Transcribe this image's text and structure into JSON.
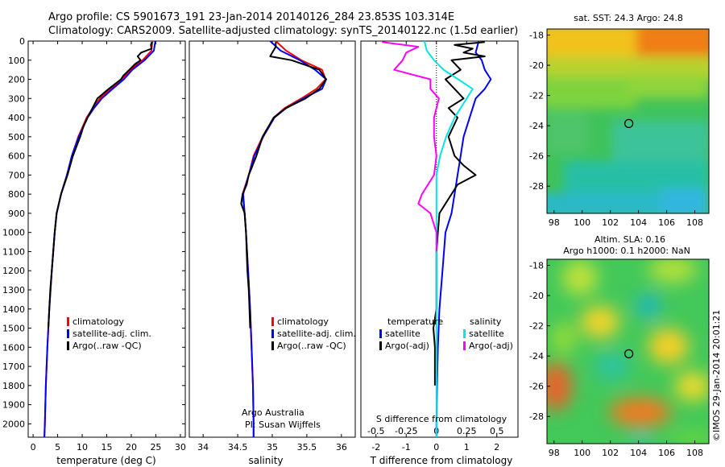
{
  "title_line1": "Argo profile: CS 5901673_191 23-Jan-2014 20140126_284 23.853S 103.314E",
  "title_line2": "Climatology: CARS2009. Satellite-adjusted climatology: synTS_20140122.nc (1.5d earlier)",
  "depth_ticks": [
    0,
    100,
    200,
    300,
    400,
    500,
    600,
    700,
    800,
    900,
    1000,
    1100,
    1200,
    1300,
    1400,
    1500,
    1600,
    1700,
    1800,
    1900,
    2000
  ],
  "colors": {
    "climatology": "#ff0000",
    "satellite": "#0000ff",
    "argo": "#000000",
    "cyan": "#00e5e5",
    "magenta": "#ff00ff"
  },
  "chart_data": [
    {
      "type": "line",
      "xlabel": "temperature (deg C)",
      "xticks": [
        0,
        5,
        10,
        15,
        20,
        25,
        30
      ],
      "xlim": [
        -1,
        31
      ],
      "ylim": [
        2070,
        0
      ],
      "legend": [
        "climatology",
        "satellite-adj. clim.",
        "Argo(..raw -QC)"
      ],
      "series": [
        {
          "name": "climatology",
          "depth": [
            0,
            50,
            100,
            150,
            200,
            250,
            300,
            350,
            400,
            500,
            600,
            700,
            800,
            900,
            1000,
            1200,
            1400,
            1600,
            1800,
            2000,
            2070
          ],
          "values": [
            24.3,
            24.1,
            22.3,
            19.8,
            18.1,
            15.8,
            13.6,
            12.2,
            10.9,
            9.2,
            7.9,
            6.9,
            5.7,
            4.8,
            4.4,
            3.8,
            3.3,
            2.9,
            2.6,
            2.4,
            2.3
          ]
        },
        {
          "name": "satellite-adj. clim.",
          "depth": [
            0,
            50,
            100,
            150,
            200,
            250,
            300,
            350,
            400,
            500,
            600,
            700,
            800,
            900,
            1000,
            1200,
            1400,
            1600,
            1800,
            2000,
            2070
          ],
          "values": [
            24.9,
            24.6,
            22.7,
            20.2,
            18.5,
            16.2,
            14.0,
            12.4,
            11.1,
            9.3,
            7.9,
            6.9,
            5.7,
            4.8,
            4.4,
            3.8,
            3.3,
            2.9,
            2.6,
            2.4,
            2.3
          ]
        },
        {
          "name": "Argo(..raw -QC)",
          "depth": [
            5,
            20,
            40,
            60,
            80,
            100,
            120,
            150,
            180,
            200,
            250,
            300,
            350,
            400,
            450,
            500,
            600,
            700,
            800,
            900,
            1000,
            1100,
            1200,
            1300,
            1400,
            1500
          ],
          "values": [
            24.2,
            24.0,
            24.1,
            22.0,
            21.3,
            21.9,
            20.8,
            19.6,
            18.4,
            17.9,
            15.4,
            13.1,
            12.1,
            11.1,
            10.2,
            9.6,
            8.1,
            7.0,
            5.7,
            4.8,
            4.4,
            4.1,
            3.8,
            3.5,
            3.3,
            3.1
          ]
        }
      ]
    },
    {
      "type": "line",
      "xlabel": "salinity",
      "xticks": [
        "34",
        "34.5",
        "35",
        "35.5",
        "36"
      ],
      "xlim": [
        33.8,
        36.2
      ],
      "ylim": [
        2070,
        0
      ],
      "legend": [
        "climatology",
        "satellite-adj. clim.",
        "Argo(..raw -QC)"
      ],
      "annotation": [
        "Argo Australia",
        "PI: Susan Wijffels"
      ],
      "series": [
        {
          "name": "climatology",
          "depth": [
            0,
            50,
            100,
            150,
            200,
            250,
            300,
            350,
            400,
            500,
            600,
            700,
            800,
            900,
            1000,
            1200,
            1400,
            1600,
            1800,
            2000,
            2070
          ],
          "values": [
            35.05,
            35.2,
            35.42,
            35.72,
            35.77,
            35.64,
            35.42,
            35.18,
            35.02,
            34.86,
            34.73,
            34.66,
            34.57,
            34.6,
            34.62,
            34.65,
            34.68,
            34.7,
            34.72,
            34.73,
            34.73
          ]
        },
        {
          "name": "satellite-adj. clim.",
          "depth": [
            0,
            50,
            100,
            150,
            200,
            250,
            300,
            350,
            400,
            500,
            600,
            700,
            800,
            900,
            1000,
            1200,
            1400,
            1600,
            1800,
            2000,
            2070
          ],
          "values": [
            34.97,
            35.12,
            35.4,
            35.62,
            35.78,
            35.72,
            35.45,
            35.2,
            35.03,
            34.87,
            34.74,
            34.66,
            34.58,
            34.6,
            34.62,
            34.65,
            34.68,
            34.7,
            34.72,
            34.73,
            34.73
          ]
        },
        {
          "name": "Argo(..raw -QC)",
          "depth": [
            5,
            30,
            60,
            80,
            100,
            150,
            200,
            250,
            300,
            350,
            400,
            500,
            600,
            700,
            750,
            800,
            850,
            900,
            1000,
            1100,
            1200,
            1300,
            1400,
            1500
          ],
          "values": [
            35.05,
            35.05,
            35.0,
            34.97,
            35.28,
            35.68,
            35.78,
            35.68,
            35.48,
            35.2,
            35.02,
            34.86,
            34.77,
            34.66,
            34.63,
            34.57,
            34.55,
            34.6,
            34.62,
            34.63,
            34.64,
            34.66,
            34.67,
            34.68
          ]
        }
      ]
    },
    {
      "type": "line",
      "xlabel": "T difference from climatology",
      "xlabel_top": "S difference from climatology",
      "xticks": [
        "-2",
        "-1",
        "0",
        "1",
        "2"
      ],
      "xticks_s": [
        "-0.5",
        "-0.25",
        "0",
        "0.25",
        "0.5"
      ],
      "xlim": [
        -2.5,
        2.7
      ],
      "ylim": [
        2070,
        0
      ],
      "legend_headers": [
        "temperature",
        "salinity"
      ],
      "legend": [
        "satellite",
        "Argo(-adj)",
        "satellite",
        "Argo(-adj)"
      ],
      "series": [
        {
          "name": "temperature satellite",
          "depth": [
            0,
            60,
            100,
            150,
            200,
            250,
            300,
            400,
            500,
            600,
            700,
            800,
            900,
            1000,
            1200,
            1400,
            1600,
            1800,
            2000,
            2070
          ],
          "values": [
            1.4,
            1.3,
            1.5,
            1.6,
            1.8,
            1.6,
            1.3,
            1.1,
            0.9,
            0.8,
            0.7,
            0.6,
            0.5,
            0.3,
            0.2,
            0.1,
            0.05,
            0.02,
            0.0,
            0.0
          ]
        },
        {
          "name": "temperature Argo(-adj)",
          "depth": [
            5,
            20,
            40,
            60,
            80,
            100,
            150,
            200,
            250,
            300,
            350,
            400,
            500,
            600,
            650,
            700,
            750,
            800,
            850,
            900,
            1000,
            1100,
            1200,
            1400,
            1500,
            1600,
            1800
          ],
          "values": [
            1.6,
            0.6,
            1.2,
            0.9,
            1.6,
            0.5,
            0.8,
            0.3,
            0.6,
            0.9,
            0.4,
            0.7,
            0.4,
            0.6,
            0.9,
            1.3,
            0.7,
            0.5,
            0.3,
            0.1,
            0.05,
            0.0,
            0.0,
            0.0,
            -0.1,
            -0.05,
            -0.05
          ]
        },
        {
          "name": "salinity satellite",
          "depth": [
            0,
            50,
            100,
            150,
            200,
            250,
            300,
            400,
            500,
            600,
            700,
            800,
            900,
            1000,
            1200,
            1400,
            1600,
            1800,
            2000,
            2070
          ],
          "values": [
            -0.1,
            -0.08,
            -0.02,
            0.06,
            0.18,
            0.3,
            0.25,
            0.15,
            0.08,
            0.03,
            0.0,
            0.0,
            0.0,
            0.0,
            0.0,
            0.0,
            0.0,
            0.0,
            0.0,
            0.0
          ]
        },
        {
          "name": "salinity Argo(-adj)",
          "depth": [
            5,
            30,
            60,
            100,
            150,
            200,
            250,
            300,
            400,
            500,
            600,
            700,
            800,
            850,
            900,
            1000,
            1100
          ],
          "values": [
            -0.45,
            -0.15,
            -0.25,
            -0.28,
            -0.35,
            -0.05,
            -0.05,
            0.02,
            -0.02,
            -0.02,
            0.0,
            -0.02,
            -0.12,
            -0.15,
            -0.05,
            0.0,
            0.0
          ]
        }
      ]
    },
    {
      "type": "heatmap",
      "title": "sat. SST: 24.3 Argo: 24.8",
      "xticks": [
        98,
        100,
        102,
        104,
        106,
        108
      ],
      "yticks": [
        -18,
        -20,
        -22,
        -24,
        -26,
        -28
      ],
      "xlim": [
        97.5,
        109
      ],
      "ylim": [
        -29.8,
        -17.6
      ],
      "marker": {
        "lon": 103.314,
        "lat": -23.853
      }
    },
    {
      "type": "heatmap",
      "title_line1": "Altim. SLA: 0.16",
      "title_line2": "Argo h1000: 0.1 h2000: NaN",
      "xticks": [
        98,
        100,
        102,
        104,
        106,
        108
      ],
      "yticks": [
        -18,
        -20,
        -22,
        -24,
        -26,
        -28
      ],
      "xlim": [
        97.5,
        109
      ],
      "ylim": [
        -29.8,
        -17.6
      ],
      "marker": {
        "lon": 103.314,
        "lat": -23.853
      }
    }
  ],
  "side_text": "©IMOS 29-Jan-2014 20:01:21"
}
